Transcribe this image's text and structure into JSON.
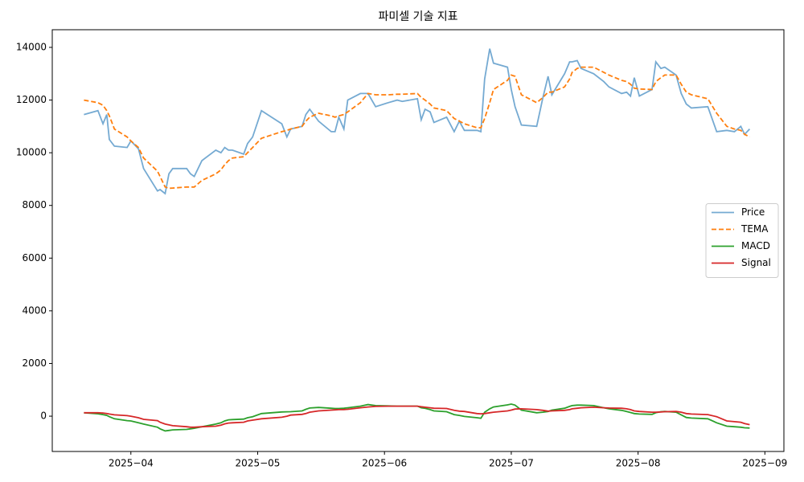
{
  "chart_data": {
    "type": "line",
    "title": "파미셀 기술 지표",
    "x": [
      3.63,
      3.74,
      3.78,
      3.81,
      3.83,
      3.87,
      3.97,
      4.0,
      4.06,
      4.1,
      4.21,
      4.23,
      4.27,
      4.3,
      4.33,
      4.44,
      4.47,
      4.5,
      4.56,
      4.67,
      4.71,
      4.74,
      4.77,
      4.8,
      4.89,
      4.92,
      4.96,
      5.03,
      5.19,
      5.23,
      5.26,
      5.35,
      5.38,
      5.41,
      5.48,
      5.58,
      5.61,
      5.64,
      5.68,
      5.71,
      5.81,
      5.87,
      5.93,
      6.03,
      6.1,
      6.14,
      6.26,
      6.29,
      6.32,
      6.36,
      6.39,
      6.49,
      6.55,
      6.59,
      6.63,
      6.73,
      6.76,
      6.79,
      6.83,
      6.86,
      6.97,
      7.0,
      7.03,
      7.08,
      7.2,
      7.25,
      7.29,
      7.32,
      7.42,
      7.46,
      7.48,
      7.52,
      7.55,
      7.65,
      7.73,
      7.77,
      7.87,
      7.91,
      7.94,
      7.97,
      8.01,
      8.11,
      8.14,
      8.18,
      8.21,
      8.3,
      8.34,
      8.38,
      8.42,
      8.55,
      8.62,
      8.7,
      8.76,
      8.81,
      8.84,
      8.88
    ],
    "series": [
      {
        "name": "Price",
        "color": "#75aad2",
        "style": "solid",
        "values": [
          11450,
          11600,
          11100,
          11450,
          10500,
          10250,
          10200,
          10450,
          10150,
          9400,
          8550,
          8600,
          8450,
          9200,
          9400,
          9400,
          9200,
          9100,
          9700,
          10100,
          10000,
          10200,
          10100,
          10100,
          9950,
          10350,
          10600,
          11600,
          11100,
          10600,
          10900,
          11000,
          11450,
          11650,
          11200,
          10800,
          10800,
          11350,
          10900,
          12000,
          12250,
          12250,
          11750,
          11900,
          12000,
          11950,
          12050,
          11250,
          11650,
          11550,
          11150,
          11350,
          10800,
          11200,
          10850,
          10850,
          10800,
          12800,
          13950,
          13400,
          13250,
          12400,
          11750,
          11050,
          11000,
          12100,
          12900,
          12200,
          13000,
          13450,
          13450,
          13500,
          13200,
          13000,
          12700,
          12500,
          12250,
          12300,
          12150,
          12850,
          12150,
          12400,
          13450,
          13200,
          13250,
          12950,
          12250,
          11850,
          11700,
          11750,
          10800,
          10850,
          10800,
          11000,
          10700,
          10900
        ]
      },
      {
        "name": "TEMA",
        "color": "#ff7f0e",
        "style": "dashed",
        "values": [
          12000,
          11900,
          11800,
          11600,
          11400,
          10900,
          10600,
          10450,
          10200,
          9800,
          9300,
          9100,
          8700,
          8650,
          8660,
          8700,
          8700,
          8700,
          8950,
          9200,
          9350,
          9550,
          9700,
          9800,
          9850,
          10000,
          10200,
          10550,
          10800,
          10850,
          10900,
          11000,
          11200,
          11350,
          11500,
          11400,
          11350,
          11400,
          11450,
          11550,
          11900,
          12250,
          12200,
          12200,
          12220,
          12220,
          12250,
          12100,
          12000,
          11850,
          11700,
          11600,
          11300,
          11200,
          11100,
          10950,
          10950,
          11300,
          11900,
          12400,
          12750,
          12950,
          12900,
          12200,
          11900,
          12100,
          12300,
          12300,
          12500,
          12800,
          13050,
          13200,
          13250,
          13250,
          13050,
          12950,
          12750,
          12700,
          12600,
          12450,
          12420,
          12400,
          12700,
          12850,
          12950,
          12950,
          12600,
          12300,
          12200,
          12050,
          11500,
          11000,
          10900,
          10850,
          10700,
          10600
        ]
      },
      {
        "name": "MACD",
        "color": "#2ca02c",
        "style": "solid",
        "values": [
          130,
          90,
          60,
          30,
          -20,
          -100,
          -170,
          -180,
          -250,
          -300,
          -420,
          -480,
          -560,
          -540,
          -520,
          -500,
          -480,
          -460,
          -400,
          -300,
          -250,
          -180,
          -140,
          -130,
          -110,
          -60,
          -20,
          100,
          160,
          165,
          170,
          200,
          260,
          310,
          330,
          300,
          290,
          290,
          300,
          320,
          380,
          440,
          400,
          390,
          380,
          380,
          380,
          320,
          300,
          250,
          200,
          170,
          60,
          30,
          -10,
          -60,
          -80,
          150,
          280,
          350,
          430,
          460,
          420,
          230,
          130,
          150,
          180,
          230,
          300,
          370,
          400,
          420,
          420,
          400,
          320,
          280,
          220,
          180,
          140,
          100,
          80,
          70,
          130,
          170,
          180,
          150,
          50,
          -50,
          -70,
          -100,
          -250,
          -380,
          -400,
          -420,
          -440,
          -450
        ]
      },
      {
        "name": "Signal",
        "color": "#d62728",
        "style": "solid",
        "values": [
          130,
          130,
          120,
          100,
          80,
          50,
          20,
          0,
          -60,
          -120,
          -170,
          -230,
          -300,
          -330,
          -360,
          -400,
          -420,
          -420,
          -400,
          -380,
          -340,
          -290,
          -260,
          -250,
          -230,
          -180,
          -150,
          -100,
          -40,
          0,
          40,
          70,
          100,
          150,
          200,
          230,
          240,
          250,
          250,
          260,
          320,
          350,
          370,
          380,
          380,
          380,
          380,
          360,
          340,
          320,
          300,
          290,
          220,
          190,
          180,
          100,
          90,
          100,
          130,
          150,
          200,
          230,
          270,
          280,
          250,
          220,
          190,
          200,
          220,
          250,
          280,
          300,
          320,
          340,
          320,
          310,
          300,
          280,
          250,
          200,
          180,
          150,
          150,
          160,
          170,
          180,
          150,
          100,
          80,
          60,
          -20,
          -180,
          -210,
          -230,
          -280,
          -320
        ]
      }
    ],
    "xlim": [
      3.38,
      9.15
    ],
    "xticks": [
      {
        "value": 4,
        "label": "2025−04"
      },
      {
        "value": 5,
        "label": "2025−05"
      },
      {
        "value": 6,
        "label": "2025−06"
      },
      {
        "value": 7,
        "label": "2025−07"
      },
      {
        "value": 8,
        "label": "2025−08"
      },
      {
        "value": 9,
        "label": "2025−09"
      }
    ],
    "ylim": [
      -1340,
      14670
    ],
    "yticks": [
      0,
      2000,
      4000,
      6000,
      8000,
      10000,
      12000,
      14000
    ],
    "grid": false,
    "legend": "right"
  }
}
